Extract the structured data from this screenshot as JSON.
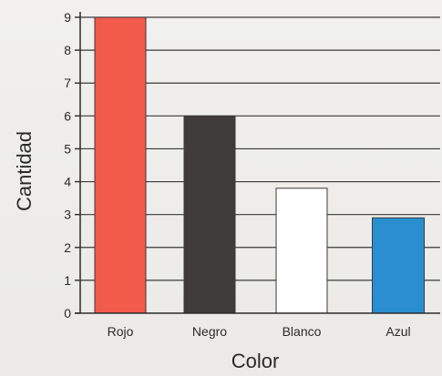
{
  "chart_data": {
    "type": "bar",
    "title": "",
    "xlabel": "Color",
    "ylabel": "Cantidad",
    "categories": [
      "Rojo",
      "Negro",
      "Blanco",
      "Azul"
    ],
    "values": [
      9,
      6,
      3.8,
      2.9
    ],
    "colors": [
      "#f25a4a",
      "#3f3c3a",
      "#ffffff",
      "#2a8fd0"
    ],
    "ylim": [
      0,
      9
    ],
    "yticks": [
      "0",
      "1",
      "2",
      "3",
      "4",
      "5",
      "6",
      "7",
      "8",
      "9"
    ],
    "grid": true,
    "legend": "none"
  }
}
